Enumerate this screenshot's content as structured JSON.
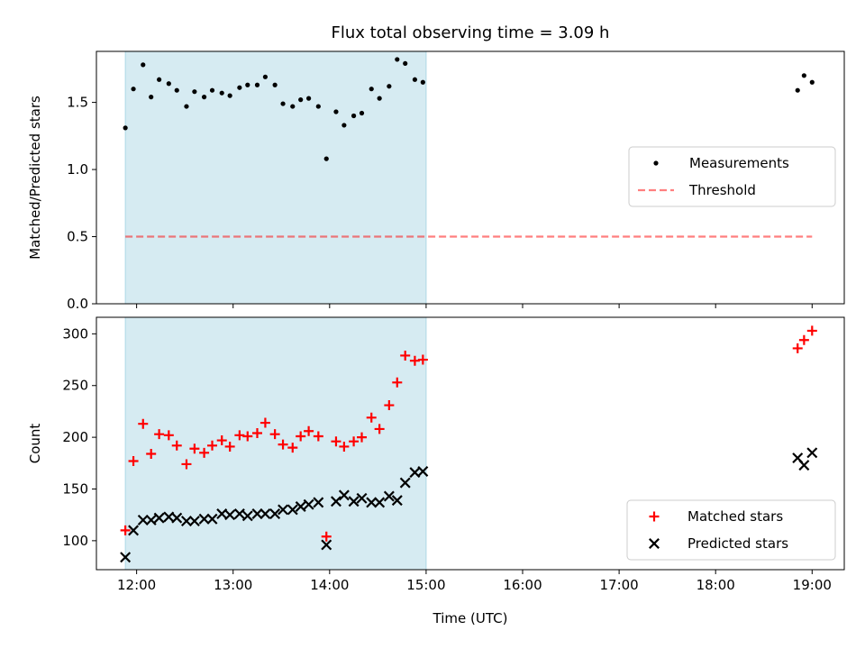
{
  "title": "Flux total observing time = 3.09 h",
  "chart_data": [
    {
      "type": "scatter",
      "ylabel": "Matched/Predicted stars",
      "xlabel": "",
      "xlim": [
        "11:35",
        "19:20"
      ],
      "ylim": [
        0,
        1.88
      ],
      "yticks": [
        "0.0",
        "0.5",
        "1.0",
        "1.5"
      ],
      "shade": {
        "from": "11:53",
        "to": "15:00",
        "color": "#add8e6"
      },
      "legend": {
        "placement": "center-right",
        "entries": [
          "Measurements",
          "Threshold"
        ]
      },
      "threshold": {
        "name": "Threshold",
        "value": 0.5,
        "from": "11:53",
        "to": "19:00",
        "color": "#ff0000"
      },
      "series": [
        {
          "name": "Measurements",
          "color": "#000000",
          "marker": "dot",
          "x": [
            "11:53",
            "11:58",
            "12:04",
            "12:09",
            "12:14",
            "12:20",
            "12:25",
            "12:31",
            "12:36",
            "12:42",
            "12:47",
            "12:53",
            "12:58",
            "13:04",
            "13:09",
            "13:15",
            "13:20",
            "13:26",
            "13:31",
            "13:37",
            "13:42",
            "13:47",
            "13:53",
            "13:58",
            "14:04",
            "14:09",
            "14:15",
            "14:20",
            "14:26",
            "14:31",
            "14:37",
            "14:42",
            "14:47",
            "14:53",
            "14:58",
            "18:51",
            "18:55",
            "19:00"
          ],
          "y": [
            1.31,
            1.6,
            1.78,
            1.54,
            1.67,
            1.64,
            1.59,
            1.47,
            1.58,
            1.54,
            1.59,
            1.57,
            1.55,
            1.61,
            1.63,
            1.63,
            1.69,
            1.63,
            1.49,
            1.47,
            1.52,
            1.53,
            1.47,
            1.08,
            1.43,
            1.33,
            1.4,
            1.42,
            1.6,
            1.53,
            1.62,
            1.82,
            1.79,
            1.67,
            1.65,
            1.59,
            1.7,
            1.65
          ]
        }
      ]
    },
    {
      "type": "scatter",
      "ylabel": "Count",
      "xlabel": "Time (UTC)",
      "xlim": [
        "11:35",
        "19:20"
      ],
      "ylim": [
        72,
        316
      ],
      "yticks": [
        "100",
        "150",
        "200",
        "250",
        "300"
      ],
      "xticks": [
        "12:00",
        "13:00",
        "14:00",
        "15:00",
        "16:00",
        "17:00",
        "18:00",
        "19:00"
      ],
      "shade": {
        "from": "11:53",
        "to": "15:00",
        "color": "#add8e6"
      },
      "legend": {
        "placement": "bottom-right",
        "entries": [
          "Matched stars",
          "Predicted stars"
        ]
      },
      "series": [
        {
          "name": "Matched stars",
          "color": "#ff0000",
          "marker": "plus",
          "x": [
            "11:53",
            "11:58",
            "12:04",
            "12:09",
            "12:14",
            "12:20",
            "12:25",
            "12:31",
            "12:36",
            "12:42",
            "12:47",
            "12:53",
            "12:58",
            "13:04",
            "13:09",
            "13:15",
            "13:20",
            "13:26",
            "13:31",
            "13:37",
            "13:42",
            "13:47",
            "13:53",
            "13:58",
            "14:04",
            "14:09",
            "14:15",
            "14:20",
            "14:26",
            "14:31",
            "14:37",
            "14:42",
            "14:47",
            "14:53",
            "14:58",
            "18:51",
            "18:55",
            "19:00"
          ],
          "y": [
            110,
            177,
            213,
            184,
            203,
            202,
            192,
            174,
            189,
            185,
            192,
            197,
            191,
            202,
            201,
            204,
            214,
            203,
            193,
            190,
            201,
            206,
            201,
            104,
            196,
            191,
            196,
            200,
            219,
            208,
            231,
            253,
            279,
            274,
            275,
            286,
            294,
            303
          ]
        },
        {
          "name": "Predicted stars",
          "color": "#000000",
          "marker": "x",
          "x": [
            "11:53",
            "11:58",
            "12:04",
            "12:09",
            "12:14",
            "12:20",
            "12:25",
            "12:31",
            "12:36",
            "12:42",
            "12:47",
            "12:53",
            "12:58",
            "13:04",
            "13:09",
            "13:15",
            "13:20",
            "13:26",
            "13:31",
            "13:37",
            "13:42",
            "13:47",
            "13:53",
            "13:58",
            "14:04",
            "14:09",
            "14:15",
            "14:20",
            "14:26",
            "14:31",
            "14:37",
            "14:42",
            "14:47",
            "14:53",
            "14:58",
            "18:51",
            "18:55",
            "19:00"
          ],
          "y": [
            84,
            110,
            120,
            120,
            122,
            123,
            122,
            119,
            119,
            121,
            121,
            126,
            125,
            126,
            124,
            126,
            126,
            126,
            130,
            130,
            133,
            135,
            137,
            96,
            138,
            144,
            138,
            141,
            137,
            137,
            143,
            139,
            156,
            166,
            167,
            180,
            173,
            185
          ]
        }
      ]
    }
  ]
}
